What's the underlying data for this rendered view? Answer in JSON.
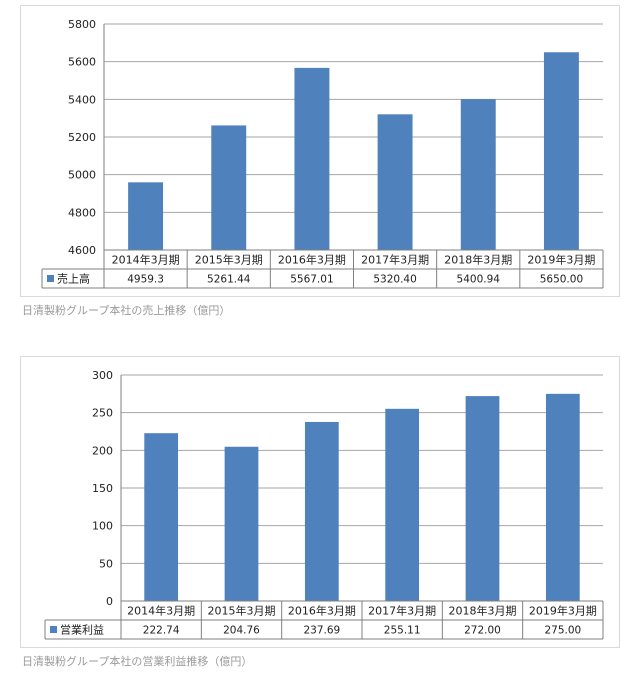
{
  "colors": {
    "bar": "#4f81bd",
    "grid": "#a6a6a6",
    "border": "#7f7f7f",
    "caption": "#9a9a9a"
  },
  "chart_data": [
    {
      "type": "bar",
      "categories": [
        "2014年3月期",
        "2015年3月期",
        "2016年3月期",
        "2017年3月期",
        "2018年3月期",
        "2019年3月期"
      ],
      "series": [
        {
          "name": "売上高",
          "values": [
            4959.3,
            5261.44,
            5567.01,
            5320.4,
            5400.94,
            5650.0
          ],
          "labels": [
            "4959.3",
            "5261.44",
            "5567.01",
            "5320.40",
            "5400.94",
            "5650.00"
          ]
        }
      ],
      "yticks": [
        "4600",
        "4800",
        "5000",
        "5200",
        "5400",
        "5600",
        "5800"
      ],
      "ylim": [
        4600,
        5800
      ],
      "grid": true,
      "legend": "data-table",
      "caption": "日清製粉グループ本社の売上推移（億円）"
    },
    {
      "type": "bar",
      "categories": [
        "2014年3月期",
        "2015年3月期",
        "2016年3月期",
        "2017年3月期",
        "2018年3月期",
        "2019年3月期"
      ],
      "series": [
        {
          "name": "営業利益",
          "values": [
            222.74,
            204.76,
            237.69,
            255.11,
            272.0,
            275.0
          ],
          "labels": [
            "222.74",
            "204.76",
            "237.69",
            "255.11",
            "272.00",
            "275.00"
          ]
        }
      ],
      "yticks": [
        "0",
        "50",
        "100",
        "150",
        "200",
        "250",
        "300"
      ],
      "ylim": [
        0,
        300
      ],
      "grid": true,
      "legend": "data-table",
      "caption": "日清製粉グループ本社の営業利益推移（億円）"
    }
  ]
}
